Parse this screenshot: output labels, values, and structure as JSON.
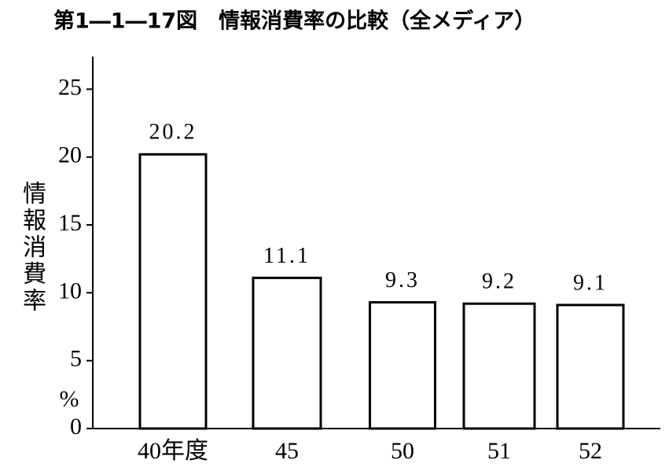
{
  "chart_data": {
    "type": "bar",
    "title": "第1―1―17図　情報消費率の比較（全メディア）",
    "y_label": "情報消費率",
    "y_unit": "%",
    "categories": [
      "40年度",
      "45",
      "50",
      "51",
      "52"
    ],
    "values": [
      20.2,
      11.1,
      9.3,
      9.2,
      9.1
    ],
    "color": "#ffffff",
    "ylim": [
      0,
      27.4
    ],
    "yticks": [
      0,
      5,
      10,
      15,
      20,
      25
    ],
    "grid": false
  }
}
